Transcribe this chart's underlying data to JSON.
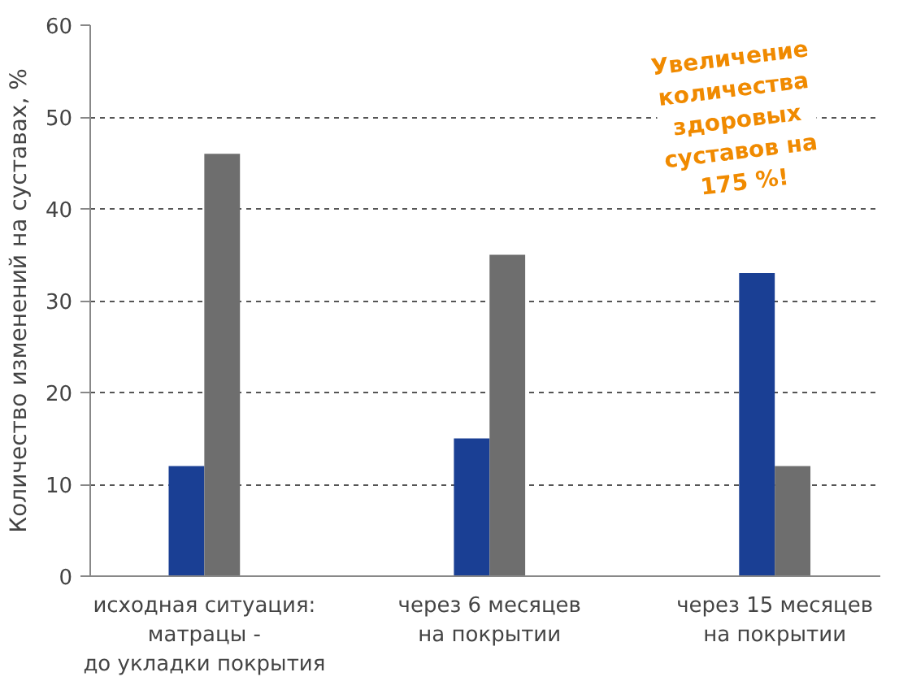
{
  "chart_data": {
    "type": "bar",
    "ylabel": "Количество изменений на суставах, %",
    "categories": [
      "исходная ситуация:\nматрацы -\nдо укладки покрытия",
      "через 6 месяцев\nна покрытии",
      "через 15 месяцев\nна покрытии"
    ],
    "series": [
      {
        "color": "#1a3f94",
        "values": [
          12,
          15,
          33
        ]
      },
      {
        "color": "#6e6e6e",
        "values": [
          46,
          35,
          12
        ]
      }
    ],
    "ylim": [
      0,
      60
    ],
    "yticks": [
      0,
      10,
      20,
      30,
      40,
      50,
      60
    ],
    "grid": "y",
    "annotations": [
      "Увеличение\nколичества\nздоровых\nсуставов на\n175 %!"
    ]
  }
}
